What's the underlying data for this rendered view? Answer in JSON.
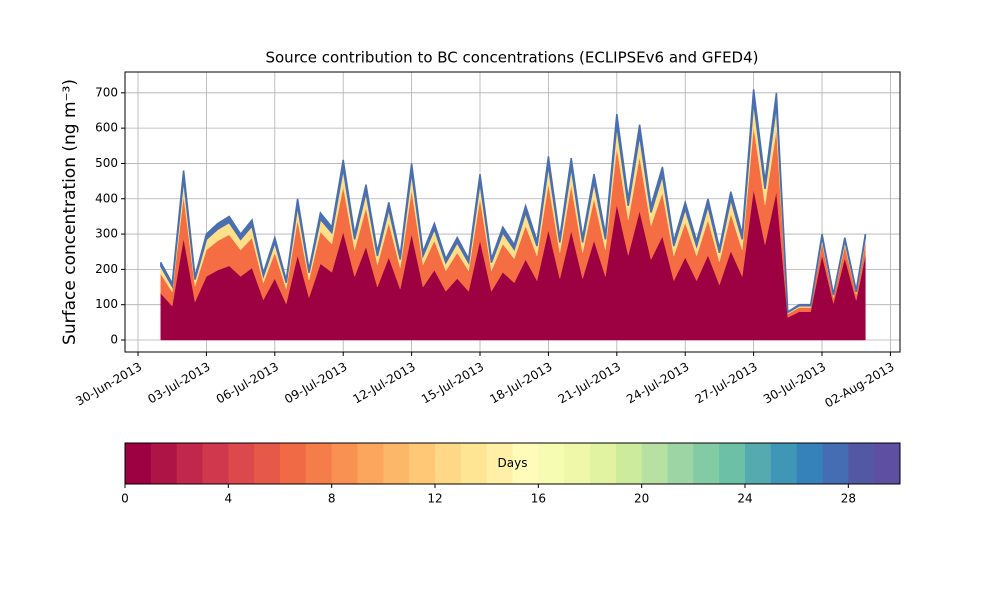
{
  "chart_data": {
    "type": "stacked_area",
    "title": "Source contribution to BC concentrations (ECLIPSEv6 and GFED4)",
    "y_label": "Surface concentration (ng m⁻³)",
    "x": [
      1,
      1.5,
      2,
      2.5,
      3,
      3.5,
      4,
      4.5,
      5,
      5.5,
      6,
      6.5,
      7,
      7.5,
      8,
      8.5,
      9,
      9.5,
      10,
      10.5,
      11,
      11.5,
      12,
      12.5,
      13,
      13.5,
      14,
      14.5,
      15,
      15.5,
      16,
      16.5,
      17,
      17.5,
      18,
      18.5,
      19,
      19.5,
      20,
      20.5,
      21,
      21.5,
      22,
      22.5,
      23,
      23.5,
      24,
      24.5,
      25,
      25.5,
      26,
      26.5,
      27,
      27.5,
      28,
      28.5,
      29,
      29.5,
      30,
      30.5,
      31,
      31.5,
      31.9
    ],
    "series": [
      {
        "color": "#9e0142",
        "values": [
          132,
          96,
          288,
          108,
          180,
          198,
          210,
          180,
          204,
          114,
          174,
          102,
          240,
          120,
          216,
          192,
          306,
          180,
          264,
          150,
          234,
          144,
          300,
          150,
          198,
          138,
          174,
          138,
          282,
          138,
          192,
          162,
          228,
          168,
          312,
          174,
          309,
          174,
          282,
          180,
          384,
          240,
          366,
          228,
          294,
          168,
          234,
          168,
          240,
          156,
          252,
          180,
          426,
          270,
          420,
          64,
          80,
          80,
          240,
          104,
          232,
          112,
          240
        ]
      },
      {
        "color": "#f46d43",
        "values": [
          55,
          40,
          120,
          45,
          75,
          83,
          88,
          75,
          85,
          48,
          73,
          43,
          100,
          50,
          90,
          80,
          128,
          75,
          110,
          63,
          98,
          60,
          125,
          63,
          83,
          58,
          73,
          58,
          118,
          58,
          80,
          68,
          95,
          70,
          130,
          73,
          129,
          73,
          118,
          75,
          160,
          100,
          153,
          95,
          123,
          70,
          98,
          70,
          100,
          65,
          105,
          75,
          178,
          113,
          175,
          10,
          12,
          12,
          36,
          16,
          35,
          17,
          36
        ]
      },
      {
        "color": "#fee08b",
        "values": [
          22,
          16,
          48,
          18,
          30,
          33,
          35,
          30,
          34,
          19,
          29,
          17,
          40,
          20,
          36,
          32,
          51,
          30,
          44,
          25,
          39,
          24,
          50,
          25,
          33,
          23,
          29,
          23,
          47,
          23,
          32,
          27,
          38,
          28,
          52,
          29,
          52,
          29,
          47,
          30,
          64,
          40,
          61,
          38,
          49,
          28,
          39,
          28,
          40,
          26,
          42,
          30,
          71,
          45,
          70,
          4,
          5,
          5,
          15,
          7,
          15,
          7,
          15
        ]
      },
      {
        "color": "#4a6fb0",
        "values": [
          11,
          8,
          24,
          9,
          15,
          16,
          17,
          15,
          17,
          9,
          14,
          8,
          20,
          10,
          18,
          16,
          25,
          15,
          22,
          12,
          19,
          12,
          25,
          12,
          16,
          11,
          14,
          11,
          23,
          11,
          16,
          13,
          19,
          14,
          26,
          14,
          25,
          14,
          23,
          15,
          32,
          20,
          30,
          19,
          24,
          14,
          19,
          14,
          20,
          13,
          21,
          15,
          35,
          22,
          35,
          2,
          3,
          3,
          9,
          3,
          8,
          4,
          9
        ]
      }
    ],
    "xlim": [
      -0.57,
      33.42
    ],
    "xticks": [
      {
        "value": 0,
        "label": "30-Jun-2013"
      },
      {
        "value": 3,
        "label": "03-Jul-2013"
      },
      {
        "value": 6,
        "label": "06-Jul-2013"
      },
      {
        "value": 9,
        "label": "09-Jul-2013"
      },
      {
        "value": 12,
        "label": "12-Jul-2013"
      },
      {
        "value": 15,
        "label": "15-Jul-2013"
      },
      {
        "value": 18,
        "label": "18-Jul-2013"
      },
      {
        "value": 21,
        "label": "21-Jul-2013"
      },
      {
        "value": 24,
        "label": "24-Jul-2013"
      },
      {
        "value": 27,
        "label": "27-Jul-2013"
      },
      {
        "value": 30,
        "label": "30-Jul-2013"
      },
      {
        "value": 33,
        "label": "02-Aug-2013"
      }
    ],
    "ylim": [
      -34,
      759
    ],
    "yticks": [
      0,
      100,
      200,
      300,
      400,
      500,
      600,
      700
    ],
    "grid": true,
    "colorbar": {
      "label": "Days",
      "lim": [
        0,
        30
      ],
      "ticks": [
        0,
        4,
        8,
        12,
        16,
        20,
        24,
        28
      ],
      "colors": [
        "#9e0142",
        "#af1446",
        "#c0274a",
        "#d0384e",
        "#dc494c",
        "#e65949",
        "#f06b45",
        "#f57d4a",
        "#f99153",
        "#fca55d",
        "#fdb768",
        "#fec877",
        "#fed886",
        "#fee593",
        "#fff0a6",
        "#fffbb8",
        "#f7fcb3",
        "#eef8a8",
        "#e1f3a0",
        "#cdeb9d",
        "#b6e1a2",
        "#9dd6a4",
        "#83cba5",
        "#6bc0a5",
        "#55aab0",
        "#3f96b7",
        "#3582ba",
        "#446db3",
        "#5358a5",
        "#5e4fa2"
      ]
    }
  }
}
